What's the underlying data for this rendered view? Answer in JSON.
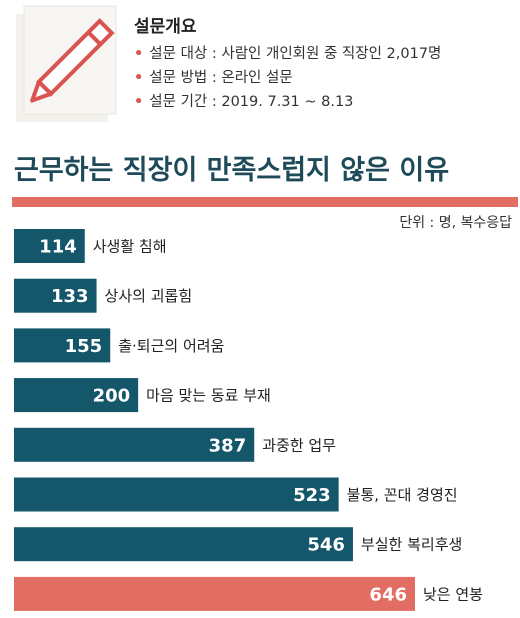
{
  "survey": {
    "heading": "설문개요",
    "items": [
      "설문 대상 : 사람인 개인회원 중 직장인 2,017명",
      "설문 방법 : 온라인 설문",
      "설문 기간 : 2019. 7.31 ~ 8.13"
    ]
  },
  "colors": {
    "bar": "#14566a",
    "highlight_bar": "#e26d63",
    "title": "#1e4a5a",
    "rule": "#e26d63"
  },
  "icons": [
    "pencil-icon",
    "paper-icon"
  ],
  "chart_data": {
    "type": "bar",
    "orientation": "horizontal",
    "title": "근무하는 직장이 만족스럽지 않은 이유",
    "unit_note": "단위 : 명, 복수응답",
    "categories": [
      "사생활 침해",
      "상사의 괴롭힘",
      "출·퇴근의 어려움",
      "마음 맞는 동료 부재",
      "과중한 업무",
      "불통, 꼰대 경영진",
      "부실한 복리후생",
      "낮은 연봉"
    ],
    "values": [
      114,
      133,
      155,
      200,
      387,
      523,
      546,
      646
    ],
    "highlight_index": 7,
    "xlim": [
      0,
      646
    ],
    "grid": false,
    "legend": "none"
  }
}
